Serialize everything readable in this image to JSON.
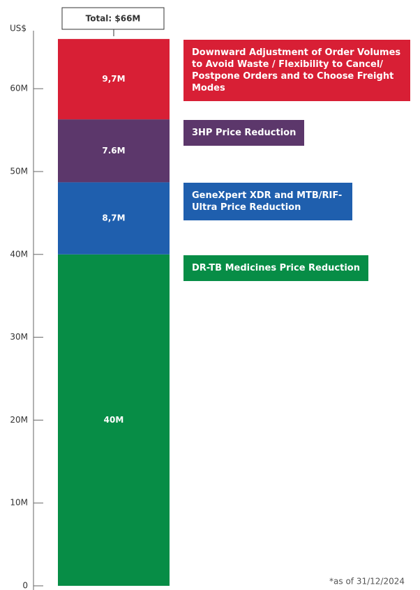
{
  "chart_data": {
    "type": "stacked-bar",
    "y_axis_label": "US$",
    "total_label": "Total: $66M",
    "note": "*as of 31/12/2024",
    "categories": [
      null
    ],
    "ylim": [
      0,
      67
    ],
    "yticks": [
      0,
      {
        "value": 10,
        "label": "10M"
      },
      {
        "value": 20,
        "label": "20M"
      },
      {
        "value": 30,
        "label": "30M"
      },
      {
        "value": 40,
        "label": "40M"
      },
      {
        "value": 50,
        "label": "50M"
      },
      {
        "value": 60,
        "label": "60M"
      }
    ],
    "series": [
      {
        "name": "DR-TB Medicines Price Reduction",
        "color": "#078d46",
        "values": [
          40
        ],
        "value_labels": [
          "40M"
        ]
      },
      {
        "name": "GeneXpert XDR and MTB/RIF-Ultra Price Reduction",
        "color": "#1f5fae",
        "values": [
          8.7
        ],
        "value_labels": [
          "8,7M"
        ]
      },
      {
        "name": "3HP Price Reduction",
        "color": "#5c376b",
        "values": [
          7.6
        ],
        "value_labels": [
          "7.6M"
        ]
      },
      {
        "name": "Downward Adjustment of Order Volumes to Avoid Waste / Flexibility to Cancel/ Postpone Orders and to Choose Freight Modes",
        "color": "#d81f35",
        "values": [
          9.7
        ],
        "value_labels": [
          "9,7M"
        ]
      }
    ]
  }
}
